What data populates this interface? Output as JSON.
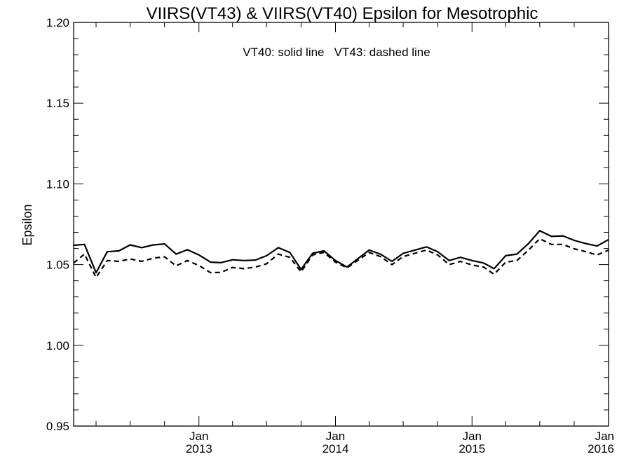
{
  "chart_data": {
    "type": "line",
    "title": "VIIRS(VT43) & VIIRS(VT40)  Epsilon for Mesotrophic",
    "annotation": "VT40: solid line   VT43: dashed line",
    "ylabel": "Epsilon",
    "xlabel": "",
    "ylim": [
      0.95,
      1.2
    ],
    "xlim": [
      "2012-02-01",
      "2016-01-01"
    ],
    "yticks": [
      "0.95",
      "1.00",
      "1.05",
      "1.10",
      "1.15",
      "1.20"
    ],
    "xticks": [
      {
        "date": "2013-01-01",
        "month": "Jan",
        "year": "2013"
      },
      {
        "date": "2014-01-01",
        "month": "Jan",
        "year": "2014"
      },
      {
        "date": "2015-01-01",
        "month": "Jan",
        "year": "2015"
      },
      {
        "date": "2016-01-01",
        "month": "Jan",
        "year": "2016"
      }
    ],
    "grid": false,
    "series": [
      {
        "name": "VT40",
        "style": "solid",
        "color": "#000000",
        "x": [
          "2012-02-01",
          "2012-03-01",
          "2012-04-01",
          "2012-05-01",
          "2012-06-01",
          "2012-07-01",
          "2012-08-01",
          "2012-09-01",
          "2012-10-01",
          "2012-11-01",
          "2012-12-01",
          "2013-01-01",
          "2013-02-01",
          "2013-03-01",
          "2013-04-01",
          "2013-05-01",
          "2013-06-01",
          "2013-07-01",
          "2013-08-01",
          "2013-09-01",
          "2013-10-01",
          "2013-11-01",
          "2013-12-01",
          "2014-01-01",
          "2014-02-01",
          "2014-03-01",
          "2014-04-01",
          "2014-05-01",
          "2014-06-01",
          "2014-07-01",
          "2014-08-01",
          "2014-09-01",
          "2014-10-01",
          "2014-11-01",
          "2014-12-01",
          "2015-01-01",
          "2015-02-01",
          "2015-03-01",
          "2015-04-01",
          "2015-05-01",
          "2015-06-01",
          "2015-07-01",
          "2015-08-01",
          "2015-09-01",
          "2015-10-01",
          "2015-11-01",
          "2015-12-01",
          "2016-01-01"
        ],
        "y": [
          1.062,
          1.0625,
          1.045,
          1.058,
          1.0585,
          1.0622,
          1.0605,
          1.0622,
          1.0628,
          1.0565,
          1.0592,
          1.056,
          1.0515,
          1.0512,
          1.053,
          1.0525,
          1.0528,
          1.0555,
          1.0605,
          1.0575,
          1.047,
          1.057,
          1.0585,
          1.0525,
          1.0485,
          1.0535,
          1.059,
          1.0565,
          1.052,
          1.057,
          1.059,
          1.061,
          1.058,
          1.0525,
          1.0545,
          1.0525,
          1.051,
          1.0475,
          1.0555,
          1.0565,
          1.063,
          1.071,
          1.0675,
          1.0678,
          1.065,
          1.063,
          1.0615,
          1.0655
        ]
      },
      {
        "name": "VT43",
        "style": "dashed",
        "color": "#000000",
        "x": [
          "2012-02-01",
          "2012-03-01",
          "2012-04-01",
          "2012-05-01",
          "2012-06-01",
          "2012-07-01",
          "2012-08-01",
          "2012-09-01",
          "2012-10-01",
          "2012-11-01",
          "2012-12-01",
          "2013-01-01",
          "2013-02-01",
          "2013-03-01",
          "2013-04-01",
          "2013-05-01",
          "2013-06-01",
          "2013-07-01",
          "2013-08-01",
          "2013-09-01",
          "2013-10-01",
          "2013-11-01",
          "2013-12-01",
          "2014-01-01",
          "2014-02-01",
          "2014-03-01",
          "2014-04-01",
          "2014-05-01",
          "2014-06-01",
          "2014-07-01",
          "2014-08-01",
          "2014-09-01",
          "2014-10-01",
          "2014-11-01",
          "2014-12-01",
          "2015-01-01",
          "2015-02-01",
          "2015-03-01",
          "2015-04-01",
          "2015-05-01",
          "2015-06-01",
          "2015-07-01",
          "2015-08-01",
          "2015-09-01",
          "2015-10-01",
          "2015-11-01",
          "2015-12-01",
          "2016-01-01"
        ],
        "y": [
          1.051,
          1.0565,
          1.042,
          1.0525,
          1.052,
          1.0535,
          1.052,
          1.054,
          1.0548,
          1.0492,
          1.0525,
          1.0495,
          1.045,
          1.0452,
          1.0482,
          1.0475,
          1.0485,
          1.0505,
          1.0565,
          1.0545,
          1.0455,
          1.056,
          1.0575,
          1.0515,
          1.048,
          1.0525,
          1.0575,
          1.055,
          1.05,
          1.055,
          1.057,
          1.059,
          1.056,
          1.05,
          1.052,
          1.0498,
          1.0485,
          1.044,
          1.0515,
          1.0525,
          1.059,
          1.066,
          1.0625,
          1.0625,
          1.0598,
          1.058,
          1.056,
          1.059
        ]
      }
    ]
  }
}
